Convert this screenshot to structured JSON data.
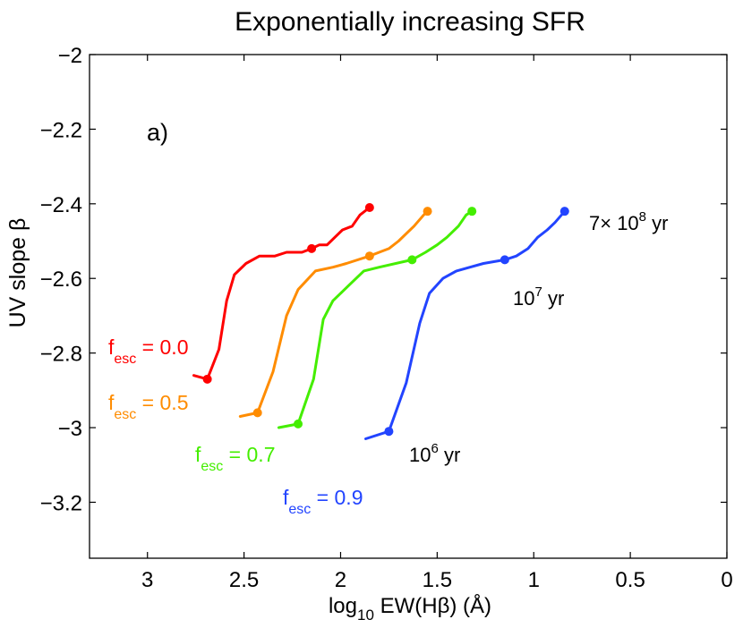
{
  "chart_data": {
    "type": "line",
    "title": "Exponentially increasing SFR",
    "panel_label": "a)",
    "xlabel": {
      "prefix": "log",
      "subscript": "10",
      "suffix": " EW(Hβ) (Å)"
    },
    "ylabel": "UV slope β",
    "xlim": [
      3.3,
      0
    ],
    "ylim": [
      -3.35,
      -2.0
    ],
    "x_reversed": true,
    "xticks": [
      3,
      2.5,
      2,
      1.5,
      1,
      0.5,
      0
    ],
    "xtick_labels": [
      "3",
      "2.5",
      "2",
      "1.5",
      "1",
      "0.5",
      "0"
    ],
    "yticks": [
      -2.0,
      -2.2,
      -2.4,
      -2.6,
      -2.8,
      -3.0,
      -3.2
    ],
    "ytick_labels": [
      "−2",
      "−2.2",
      "−2.4",
      "−2.6",
      "−2.8",
      "−3",
      "−3.2"
    ],
    "series": [
      {
        "name": "fesc = 0.0",
        "label_main": "f",
        "label_sub": "esc",
        "label_value": " = 0.0",
        "color": "#ff0000",
        "x": [
          2.76,
          2.69,
          2.63,
          2.59,
          2.55,
          2.49,
          2.42,
          2.34,
          2.28,
          2.2,
          2.15,
          2.11,
          2.07,
          2.03,
          1.99,
          1.94,
          1.9,
          1.85
        ],
        "y": [
          -2.86,
          -2.87,
          -2.79,
          -2.66,
          -2.59,
          -2.56,
          -2.54,
          -2.54,
          -2.53,
          -2.53,
          -2.52,
          -2.51,
          -2.51,
          -2.49,
          -2.47,
          -2.46,
          -2.43,
          -2.41
        ],
        "markers": [
          {
            "x": 2.69,
            "y": -2.87
          },
          {
            "x": 2.15,
            "y": -2.52
          },
          {
            "x": 1.85,
            "y": -2.41
          }
        ]
      },
      {
        "name": "fesc = 0.5",
        "label_main": "f",
        "label_sub": "esc",
        "label_value": " = 0.5",
        "color": "#ff8c00",
        "x": [
          2.52,
          2.43,
          2.35,
          2.28,
          2.22,
          2.13,
          2.04,
          1.97,
          1.85,
          1.8,
          1.75,
          1.7,
          1.66,
          1.62,
          1.57,
          1.55
        ],
        "y": [
          -2.97,
          -2.96,
          -2.85,
          -2.7,
          -2.63,
          -2.58,
          -2.57,
          -2.56,
          -2.54,
          -2.53,
          -2.52,
          -2.5,
          -2.48,
          -2.46,
          -2.43,
          -2.42
        ],
        "markers": [
          {
            "x": 2.43,
            "y": -2.96
          },
          {
            "x": 1.85,
            "y": -2.54
          },
          {
            "x": 1.55,
            "y": -2.42
          }
        ]
      },
      {
        "name": "fesc = 0.7",
        "label_main": "f",
        "label_sub": "esc",
        "label_value": " = 0.7",
        "color": "#44ee00",
        "x": [
          2.32,
          2.22,
          2.14,
          2.09,
          2.04,
          1.96,
          1.88,
          1.8,
          1.63,
          1.56,
          1.5,
          1.45,
          1.39,
          1.35,
          1.32
        ],
        "y": [
          -3.0,
          -2.99,
          -2.87,
          -2.71,
          -2.66,
          -2.62,
          -2.58,
          -2.57,
          -2.55,
          -2.53,
          -2.51,
          -2.49,
          -2.46,
          -2.43,
          -2.42
        ],
        "markers": [
          {
            "x": 2.22,
            "y": -2.99
          },
          {
            "x": 1.63,
            "y": -2.55
          },
          {
            "x": 1.32,
            "y": -2.42
          }
        ]
      },
      {
        "name": "fesc = 0.9",
        "label_main": "f",
        "label_sub": "esc",
        "label_value": " = 0.9",
        "color": "#2244ff",
        "x": [
          1.87,
          1.75,
          1.66,
          1.59,
          1.54,
          1.47,
          1.4,
          1.33,
          1.26,
          1.15,
          1.09,
          1.03,
          0.98,
          0.93,
          0.89,
          0.84
        ],
        "y": [
          -3.03,
          -3.01,
          -2.88,
          -2.72,
          -2.64,
          -2.6,
          -2.58,
          -2.57,
          -2.56,
          -2.55,
          -2.54,
          -2.52,
          -2.49,
          -2.47,
          -2.45,
          -2.42
        ],
        "markers": [
          {
            "x": 1.75,
            "y": -3.01
          },
          {
            "x": 1.15,
            "y": -2.55
          },
          {
            "x": 0.84,
            "y": -2.42
          }
        ]
      }
    ],
    "annotations": [
      {
        "name": "age-1e6",
        "prefix": "10",
        "sup": "6",
        "suffix": " yr"
      },
      {
        "name": "age-1e7",
        "prefix": "10",
        "sup": "7",
        "suffix": " yr"
      },
      {
        "name": "age-7e8",
        "prefix": "7× 10",
        "sup": "8",
        "suffix": " yr"
      }
    ]
  }
}
